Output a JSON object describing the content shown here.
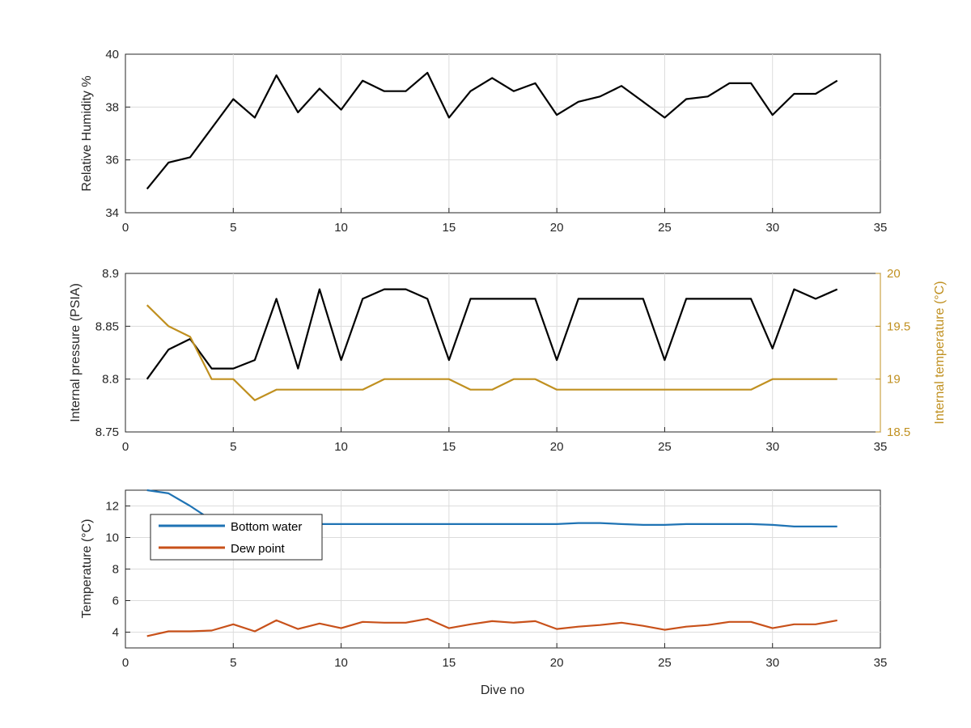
{
  "colors": {
    "black": "#000000",
    "pressure": "#000000",
    "temperature_axis": "#c09020",
    "internal_temperature": "#c09020",
    "bottom_water": "#1f73b4",
    "dew_point": "#c8511a"
  },
  "chart_data": [
    {
      "type": "line",
      "xlabel": "",
      "ylabel": "Relative Humidity %",
      "xlim": [
        0,
        35
      ],
      "ylim": [
        34,
        40
      ],
      "xticks": [
        "0",
        "5",
        "10",
        "15",
        "20",
        "25",
        "30",
        "35"
      ],
      "yticks": [
        "34",
        "36",
        "38",
        "40"
      ],
      "grid": true,
      "series": [
        {
          "color": "#000000",
          "x": [
            1,
            2,
            3,
            4,
            5,
            6,
            7,
            8,
            9,
            10,
            11,
            12,
            13,
            14,
            15,
            16,
            17,
            18,
            19,
            20,
            21,
            22,
            23,
            24,
            25,
            26,
            27,
            28,
            29,
            30,
            31,
            32,
            33
          ],
          "y": [
            34.9,
            35.9,
            36.1,
            37.2,
            38.3,
            37.6,
            39.2,
            37.8,
            38.7,
            37.9,
            39.0,
            38.6,
            38.6,
            39.3,
            37.6,
            38.6,
            39.1,
            38.6,
            38.9,
            37.7,
            38.2,
            38.4,
            38.8,
            38.2,
            37.6,
            38.3,
            38.4,
            38.9,
            38.9,
            37.7,
            38.5,
            38.5,
            39.0
          ]
        }
      ]
    },
    {
      "type": "line",
      "xlabel": "",
      "ylabel": "Internal pressure (PSIA)",
      "ylabel_right": "Internal temperature (°C)",
      "xlim": [
        0,
        35
      ],
      "ylim": [
        8.75,
        8.9
      ],
      "ylim_right": [
        18.5,
        20
      ],
      "xticks": [
        "0",
        "5",
        "10",
        "15",
        "20",
        "25",
        "30",
        "35"
      ],
      "yticks": [
        "8.75",
        "8.8",
        "8.85",
        "8.9"
      ],
      "yticks_right": [
        "18.5",
        "19",
        "19.5",
        "20"
      ],
      "grid": true,
      "series": [
        {
          "axis": "left",
          "color": "#000000",
          "x": [
            1,
            2,
            3,
            4,
            5,
            6,
            7,
            8,
            9,
            10,
            11,
            12,
            13,
            14,
            15,
            16,
            17,
            18,
            19,
            20,
            21,
            22,
            23,
            24,
            25,
            26,
            27,
            28,
            29,
            30,
            31,
            32,
            33
          ],
          "y": [
            8.8,
            8.828,
            8.838,
            8.81,
            8.81,
            8.818,
            8.876,
            8.81,
            8.885,
            8.818,
            8.876,
            8.885,
            8.885,
            8.876,
            8.818,
            8.876,
            8.876,
            8.876,
            8.876,
            8.818,
            8.876,
            8.876,
            8.876,
            8.876,
            8.818,
            8.876,
            8.876,
            8.876,
            8.876,
            8.829,
            8.885,
            8.876,
            8.885
          ]
        },
        {
          "axis": "right",
          "color": "#c09020",
          "x": [
            1,
            2,
            3,
            4,
            5,
            6,
            7,
            8,
            9,
            10,
            11,
            12,
            13,
            14,
            15,
            16,
            17,
            18,
            19,
            20,
            21,
            22,
            23,
            24,
            25,
            26,
            27,
            28,
            29,
            30,
            31,
            32,
            33
          ],
          "y": [
            19.7,
            19.5,
            19.4,
            19.0,
            19.0,
            18.8,
            18.9,
            18.9,
            18.9,
            18.9,
            18.9,
            19.0,
            19.0,
            19.0,
            19.0,
            18.9,
            18.9,
            19.0,
            19.0,
            18.9,
            18.9,
            18.9,
            18.9,
            18.9,
            18.9,
            18.9,
            18.9,
            18.9,
            18.9,
            19.0,
            19.0,
            19.0,
            19.0
          ]
        }
      ]
    },
    {
      "type": "line",
      "xlabel": "Dive no",
      "ylabel": "Temperature (°C)",
      "xlim": [
        0,
        35
      ],
      "ylim": [
        3,
        13
      ],
      "xticks": [
        "0",
        "5",
        "10",
        "15",
        "20",
        "25",
        "30",
        "35"
      ],
      "yticks": [
        "4",
        "6",
        "8",
        "10",
        "12"
      ],
      "grid": true,
      "legend": "top-left",
      "series": [
        {
          "name": "Bottom water",
          "color": "#1f73b4",
          "x": [
            1,
            2,
            3,
            4,
            5,
            6,
            7,
            8,
            9,
            10,
            11,
            12,
            13,
            14,
            15,
            16,
            17,
            18,
            19,
            20,
            21,
            22,
            23,
            24,
            25,
            26,
            27,
            28,
            29,
            30,
            31,
            32,
            33
          ],
          "y": [
            13.0,
            12.8,
            12.0,
            11.1,
            10.9,
            10.85,
            10.85,
            10.85,
            10.85,
            10.85,
            10.85,
            10.85,
            10.85,
            10.85,
            10.85,
            10.85,
            10.85,
            10.85,
            10.85,
            10.85,
            10.92,
            10.92,
            10.85,
            10.8,
            10.8,
            10.85,
            10.85,
            10.85,
            10.85,
            10.8,
            10.7,
            10.7,
            10.7
          ]
        },
        {
          "name": "Dew point",
          "color": "#c8511a",
          "x": [
            1,
            2,
            3,
            4,
            5,
            6,
            7,
            8,
            9,
            10,
            11,
            12,
            13,
            14,
            15,
            16,
            17,
            18,
            19,
            20,
            21,
            22,
            23,
            24,
            25,
            26,
            27,
            28,
            29,
            30,
            31,
            32,
            33
          ],
          "y": [
            3.75,
            4.05,
            4.05,
            4.1,
            4.5,
            4.05,
            4.75,
            4.2,
            4.55,
            4.25,
            4.65,
            4.6,
            4.6,
            4.85,
            4.25,
            4.5,
            4.7,
            4.6,
            4.7,
            4.2,
            4.35,
            4.45,
            4.6,
            4.4,
            4.15,
            4.35,
            4.45,
            4.65,
            4.65,
            4.25,
            4.5,
            4.5,
            4.75
          ]
        }
      ]
    }
  ]
}
